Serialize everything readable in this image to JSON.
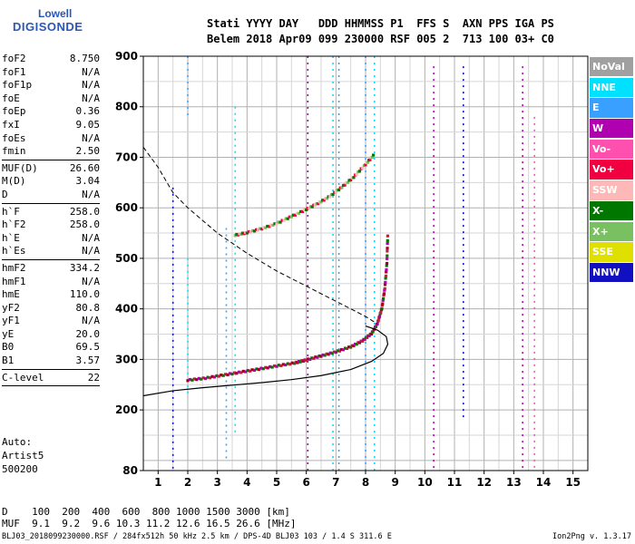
{
  "logo": {
    "line1": "Lowell",
    "line2": "DIGISONDE"
  },
  "header": {
    "line1": "Stati YYYY DAY   DDD HHMMSS P1  FFS S  AXN PPS IGA PS",
    "line2": "Belem 2018 Apr09 099 230000 RSF 005 2  713 100 03+ C0"
  },
  "params": [
    {
      "label": "foF2",
      "value": "8.750"
    },
    {
      "label": "foF1",
      "value": "N/A"
    },
    {
      "label": "foF1p",
      "value": "N/A"
    },
    {
      "label": "foE",
      "value": "N/A"
    },
    {
      "label": "foEp",
      "value": "0.36"
    },
    {
      "label": "fxI",
      "value": "9.05"
    },
    {
      "label": "foEs",
      "value": "N/A"
    },
    {
      "label": "fmin",
      "value": "2.50"
    },
    {
      "sep": true
    },
    {
      "label": "MUF(D)",
      "value": "26.60"
    },
    {
      "label": "M(D)",
      "value": "3.04"
    },
    {
      "label": "D",
      "value": "N/A"
    },
    {
      "sep": true
    },
    {
      "label": "h`F",
      "value": "258.0"
    },
    {
      "label": "h`F2",
      "value": "258.0"
    },
    {
      "label": "h`E",
      "value": "N/A"
    },
    {
      "label": "h`Es",
      "value": "N/A"
    },
    {
      "sep": true
    },
    {
      "label": "hmF2",
      "value": "334.2"
    },
    {
      "label": "hmF1",
      "value": "N/A"
    },
    {
      "label": "hmE",
      "value": "110.0"
    },
    {
      "label": "yF2",
      "value": "80.8"
    },
    {
      "label": "yF1",
      "value": "N/A"
    },
    {
      "label": "yE",
      "value": "20.0"
    },
    {
      "label": "B0",
      "value": "69.5"
    },
    {
      "label": "B1",
      "value": "3.57"
    },
    {
      "sep": true
    },
    {
      "label": "C-level",
      "value": "22"
    },
    {
      "sep": true
    }
  ],
  "auto": {
    "line1": "Auto:",
    "line2": "Artist5",
    "line3": "500200"
  },
  "legend": [
    {
      "label": "NoVal",
      "color": "#a0a0a0"
    },
    {
      "label": "NNE",
      "color": "#00e0ff"
    },
    {
      "label": "E",
      "color": "#3aa0ff"
    },
    {
      "label": "W",
      "color": "#b000b0"
    },
    {
      "label": "Vo-",
      "color": "#ff50b0"
    },
    {
      "label": "Vo+",
      "color": "#f00040"
    },
    {
      "label": "SSW",
      "color": "#ffb8b8"
    },
    {
      "label": "X-",
      "color": "#007800"
    },
    {
      "label": "X+",
      "color": "#78c060"
    },
    {
      "label": "SSE",
      "color": "#e0e000"
    },
    {
      "label": "NNW",
      "color": "#1010c0"
    }
  ],
  "chart_data": {
    "type": "scatter",
    "xlim": [
      0.5,
      15.5
    ],
    "ylim": [
      80,
      900
    ],
    "x_ticks": [
      "1",
      "2",
      "3",
      "4",
      "5",
      "6",
      "7",
      "8",
      "9",
      "10",
      "11",
      "12",
      "13",
      "14",
      "15"
    ],
    "y_ticks": [
      "80",
      "200",
      "300",
      "400",
      "500",
      "600",
      "700",
      "800",
      "900"
    ],
    "y_tick_values": [
      80,
      200,
      300,
      400,
      500,
      600,
      700,
      800,
      900
    ],
    "o_trace": {
      "x": [
        2.0,
        2.6,
        3.2,
        3.8,
        4.4,
        5.0,
        5.6,
        6.0,
        6.5,
        7.0,
        7.5,
        7.9,
        8.2,
        8.4,
        8.55,
        8.65,
        8.72,
        8.75
      ],
      "y": [
        258,
        262,
        268,
        274,
        280,
        286,
        292,
        298,
        306,
        314,
        324,
        336,
        350,
        370,
        400,
        440,
        490,
        550
      ]
    },
    "x_trace": {
      "x": [
        3.6,
        4.0,
        4.5,
        5.0,
        5.5,
        6.0,
        6.4,
        6.8,
        7.2,
        7.6,
        8.0,
        8.3
      ],
      "y": [
        545,
        550,
        558,
        568,
        582,
        596,
        608,
        622,
        640,
        660,
        685,
        705
      ]
    },
    "profile": {
      "x": [
        0.5,
        1.5,
        2.5,
        3.5,
        4.5,
        5.5,
        6.5,
        7.5,
        8.2,
        8.6,
        8.75,
        8.7,
        8.4,
        8.0
      ],
      "y": [
        228,
        238,
        244,
        249,
        254,
        260,
        268,
        280,
        296,
        312,
        330,
        345,
        358,
        366
      ]
    },
    "dashed": {
      "x": [
        0.5,
        1.0,
        1.5,
        2.0,
        2.5,
        3.0,
        4.0,
        5.0,
        6.0,
        7.0,
        7.5,
        8.0,
        8.4
      ],
      "y": [
        720,
        680,
        630,
        600,
        575,
        550,
        510,
        475,
        445,
        415,
        400,
        385,
        370
      ]
    },
    "vertical_streaks": [
      {
        "x": 1.5,
        "y0": 80,
        "y1": 640,
        "color": "#1010c0"
      },
      {
        "x": 2.0,
        "y0": 780,
        "y1": 900,
        "color": "#3aa0ff"
      },
      {
        "x": 2.0,
        "y0": 230,
        "y1": 500,
        "color": "#00e0ff"
      },
      {
        "x": 3.3,
        "y0": 100,
        "y1": 560,
        "color": "#3aa0ff"
      },
      {
        "x": 3.6,
        "y0": 150,
        "y1": 800,
        "color": "#00e0ff"
      },
      {
        "x": 6.05,
        "y0": 80,
        "y1": 900,
        "color": "#b000b0"
      },
      {
        "x": 6.9,
        "y0": 80,
        "y1": 900,
        "color": "#00e0ff"
      },
      {
        "x": 7.1,
        "y0": 80,
        "y1": 900,
        "color": "#3aa0ff"
      },
      {
        "x": 8.0,
        "y0": 80,
        "y1": 900,
        "color": "#3aa0ff"
      },
      {
        "x": 8.3,
        "y0": 80,
        "y1": 900,
        "color": "#00e0ff"
      },
      {
        "x": 10.3,
        "y0": 80,
        "y1": 880,
        "color": "#b000b0"
      },
      {
        "x": 11.3,
        "y0": 180,
        "y1": 880,
        "color": "#1010c0"
      },
      {
        "x": 13.3,
        "y0": 80,
        "y1": 880,
        "color": "#b000b0"
      },
      {
        "x": 13.7,
        "y0": 80,
        "y1": 780,
        "color": "#ff50b0"
      }
    ]
  },
  "distance_table": {
    "line1": "D    100  200  400  600  800 1000 1500 3000 [km]",
    "line2": "MUF  9.1  9.2  9.6 10.3 11.2 12.6 16.5 26.6 [MHz]"
  },
  "footer": "BLJ03_2018099230000.RSF / 284fx512h 50 kHz 2.5 km / DPS-4D BLJ03 103 / 1.4 S 311.6 E",
  "version": "Ion2Png v. 1.3.17"
}
